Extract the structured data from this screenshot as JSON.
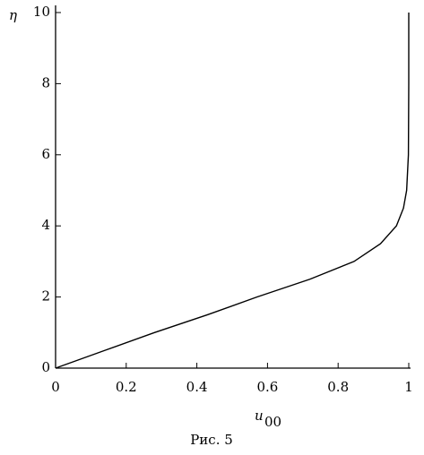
{
  "chart_data": {
    "type": "line",
    "y_label": "η",
    "x_label": "u",
    "x_label_subscript": "00",
    "caption": "Рис. 5",
    "x": [
      0,
      0.14,
      0.28,
      0.43,
      0.57,
      0.72,
      0.845,
      0.92,
      0.965,
      0.985,
      0.994,
      0.999,
      1,
      1
    ],
    "values": [
      0,
      0.5,
      1,
      1.5,
      2,
      2.5,
      3,
      3.5,
      4,
      4.5,
      5,
      6,
      8,
      10
    ],
    "color": "#000000",
    "xlim": [
      0,
      1
    ],
    "ylim": [
      0,
      10
    ],
    "xticks": [
      0,
      0.2,
      0.4,
      0.6,
      0.8,
      1
    ],
    "yticks": [
      0,
      2,
      4,
      6,
      8,
      10
    ]
  }
}
